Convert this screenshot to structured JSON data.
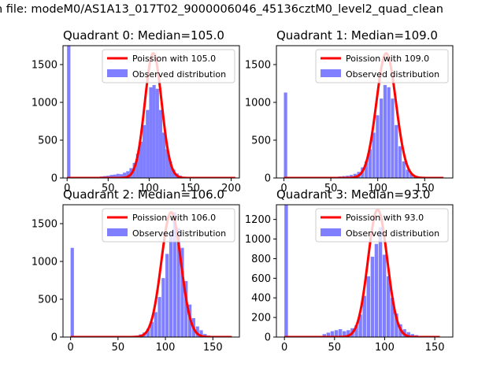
{
  "figure": {
    "suptitle": "n file: modeM0/AS1A13_017T02_9000006046_45136cztM0_level2_quad_clean"
  },
  "colors": {
    "poisson_line": "#ff0000",
    "observed_bars": "#7f7fff",
    "axis": "#000000",
    "legend_border": "#cccccc"
  },
  "chart_data": [
    {
      "type": "bar",
      "title": "Quadrant 0: Median=105.0",
      "xlim": [
        -5,
        210
      ],
      "ylim": [
        0,
        1750
      ],
      "xticks": [
        0,
        50,
        100,
        150,
        200
      ],
      "yticks": [
        0,
        500,
        1000,
        1500
      ],
      "legend": {
        "placement": "top-right",
        "entries": [
          "Poission with 105.0",
          "Observed distribution"
        ]
      },
      "hist": {
        "bin_width": 4,
        "bins": [
          [
            0,
            1750
          ],
          [
            40,
            20
          ],
          [
            44,
            25
          ],
          [
            48,
            30
          ],
          [
            52,
            40
          ],
          [
            56,
            45
          ],
          [
            60,
            55
          ],
          [
            64,
            50
          ],
          [
            68,
            70
          ],
          [
            72,
            90
          ],
          [
            76,
            130
          ],
          [
            80,
            200
          ],
          [
            84,
            320
          ],
          [
            88,
            480
          ],
          [
            92,
            700
          ],
          [
            96,
            900
          ],
          [
            100,
            1200
          ],
          [
            104,
            1230
          ],
          [
            108,
            1180
          ],
          [
            112,
            900
          ],
          [
            116,
            600
          ],
          [
            120,
            380
          ],
          [
            124,
            220
          ],
          [
            128,
            110
          ],
          [
            132,
            60
          ],
          [
            136,
            30
          ],
          [
            140,
            15
          ],
          [
            144,
            8
          ]
        ]
      },
      "poisson": {
        "mean": 105.0,
        "peak": 1650,
        "sigma": 10.25,
        "x_range": [
          0,
          205
        ]
      }
    },
    {
      "type": "bar",
      "title": "Quadrant 1: Median=109.0",
      "xlim": [
        -8,
        180
      ],
      "ylim": [
        0,
        1750
      ],
      "xticks": [
        0,
        50,
        100,
        150
      ],
      "yticks": [
        0,
        500,
        1000,
        1500
      ],
      "legend": {
        "placement": "top-right",
        "entries": [
          "Poission with 109.0",
          "Observed distribution"
        ]
      },
      "hist": {
        "bin_width": 3.5,
        "bins": [
          [
            0,
            1130
          ],
          [
            50,
            10
          ],
          [
            54,
            15
          ],
          [
            58,
            20
          ],
          [
            62,
            25
          ],
          [
            66,
            30
          ],
          [
            70,
            40
          ],
          [
            74,
            55
          ],
          [
            78,
            80
          ],
          [
            82,
            140
          ],
          [
            86,
            220
          ],
          [
            90,
            380
          ],
          [
            94,
            600
          ],
          [
            98,
            830
          ],
          [
            102,
            1050
          ],
          [
            106,
            1230
          ],
          [
            110,
            1200
          ],
          [
            114,
            1050
          ],
          [
            118,
            700
          ],
          [
            122,
            420
          ],
          [
            126,
            220
          ],
          [
            130,
            110
          ],
          [
            134,
            60
          ],
          [
            138,
            25
          ]
        ]
      },
      "poisson": {
        "mean": 109.0,
        "peak": 1650,
        "sigma": 10.44,
        "x_range": [
          0,
          170
        ]
      }
    },
    {
      "type": "bar",
      "title": "Quadrant 2: Median=106.0",
      "xlim": [
        -8,
        178
      ],
      "ylim": [
        0,
        1750
      ],
      "xticks": [
        0,
        50,
        100,
        150
      ],
      "yticks": [
        0,
        500,
        1000,
        1500
      ],
      "legend": {
        "placement": "top-right",
        "entries": [
          "Poission with 106.0",
          "Observed distribution"
        ]
      },
      "hist": {
        "bin_width": 3.5,
        "bins": [
          [
            0,
            1180
          ],
          [
            60,
            10
          ],
          [
            64,
            15
          ],
          [
            68,
            20
          ],
          [
            72,
            35
          ],
          [
            76,
            60
          ],
          [
            80,
            110
          ],
          [
            84,
            200
          ],
          [
            88,
            330
          ],
          [
            92,
            530
          ],
          [
            96,
            780
          ],
          [
            100,
            1100
          ],
          [
            104,
            1380
          ],
          [
            108,
            1650
          ],
          [
            112,
            1440
          ],
          [
            116,
            1180
          ],
          [
            120,
            740
          ],
          [
            124,
            430
          ],
          [
            128,
            250
          ],
          [
            132,
            140
          ],
          [
            136,
            90
          ],
          [
            140,
            40
          ],
          [
            144,
            20
          ],
          [
            148,
            10
          ]
        ]
      },
      "poisson": {
        "mean": 106.0,
        "peak": 1650,
        "sigma": 10.3,
        "x_range": [
          0,
          170
        ]
      }
    },
    {
      "type": "bar",
      "title": "Quadrant 3: Median=93.0",
      "xlim": [
        -8,
        168
      ],
      "ylim": [
        0,
        1350
      ],
      "xticks": [
        0,
        50,
        100,
        150
      ],
      "yticks": [
        0,
        200,
        400,
        600,
        800,
        1000,
        1200
      ],
      "legend": {
        "placement": "top-right",
        "entries": [
          "Poission with 93.0",
          "Observed distribution"
        ]
      },
      "hist": {
        "bin_width": 3.5,
        "bins": [
          [
            0,
            1350
          ],
          [
            38,
            30
          ],
          [
            42,
            45
          ],
          [
            46,
            60
          ],
          [
            50,
            70
          ],
          [
            54,
            80
          ],
          [
            58,
            60
          ],
          [
            62,
            70
          ],
          [
            66,
            90
          ],
          [
            70,
            120
          ],
          [
            74,
            230
          ],
          [
            78,
            420
          ],
          [
            82,
            620
          ],
          [
            86,
            820
          ],
          [
            90,
            950
          ],
          [
            94,
            1120
          ],
          [
            98,
            840
          ],
          [
            102,
            620
          ],
          [
            106,
            400
          ],
          [
            110,
            240
          ],
          [
            114,
            130
          ],
          [
            118,
            80
          ],
          [
            122,
            50
          ],
          [
            126,
            30
          ],
          [
            130,
            20
          ]
        ]
      },
      "poisson": {
        "mean": 93.0,
        "peak": 1300,
        "sigma": 9.64,
        "x_range": [
          0,
          155
        ]
      }
    }
  ]
}
